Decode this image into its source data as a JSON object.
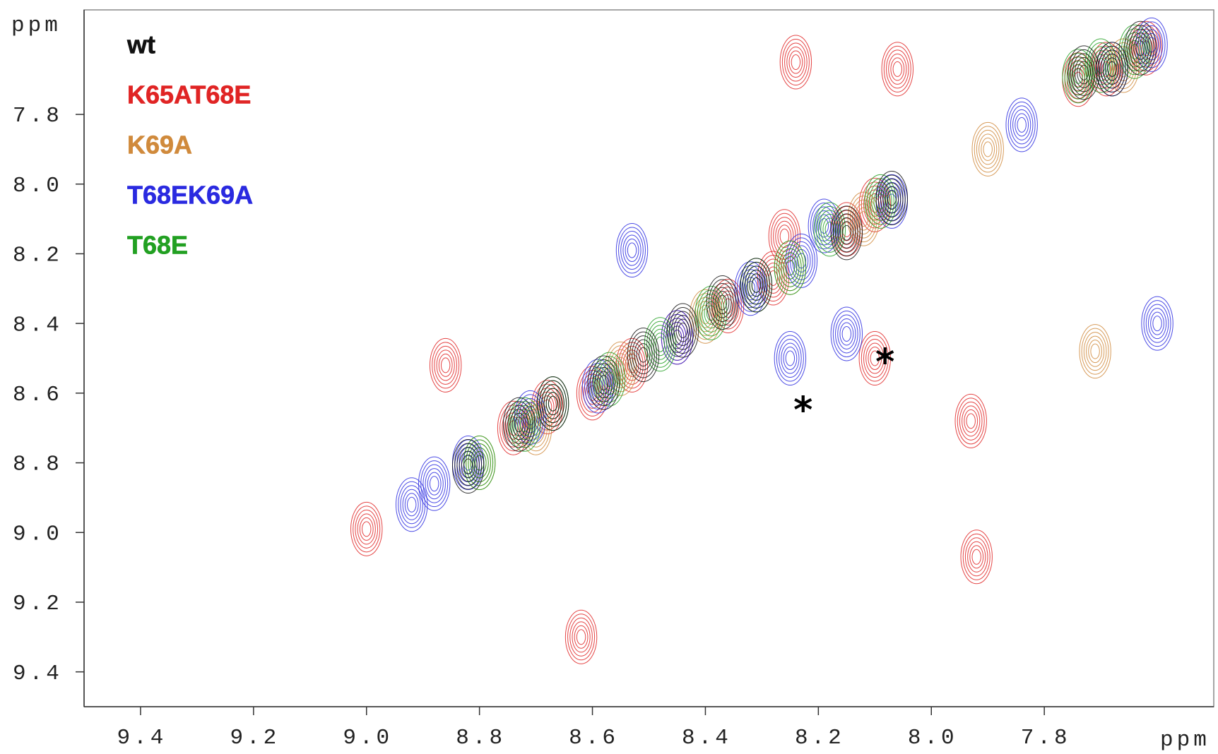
{
  "chart_data": {
    "type": "contour",
    "x_unit_label": "ppm",
    "y_unit_label": "ppm",
    "xlim": [
      9.5,
      7.5
    ],
    "ylim": [
      7.5,
      9.5
    ],
    "xticks": [
      9.4,
      9.2,
      {
        "value": 9.0,
        "label": "9.0"
      },
      8.8,
      8.6,
      8.4,
      8.2,
      {
        "value": 8.0,
        "label": "8.0"
      },
      7.8
    ],
    "yticks": [
      7.8,
      {
        "value": 8.0,
        "label": "8.0"
      },
      8.2,
      8.4,
      8.6,
      8.8,
      {
        "value": 9.0,
        "label": "9.0"
      },
      9.2,
      9.4
    ],
    "legend": "top-left",
    "series": [
      {
        "name": "K65AT68E",
        "color": "#e02424",
        "x": [
          7.62,
          7.69,
          7.74,
          8.1,
          8.15,
          8.28,
          8.36,
          8.45,
          8.53,
          8.6,
          8.68,
          8.74,
          8.24,
          8.06,
          7.92,
          7.93,
          8.62,
          9.0,
          8.86,
          8.1,
          8.26
        ],
        "values": [
          7.61,
          7.67,
          7.7,
          8.06,
          8.13,
          8.27,
          8.35,
          8.44,
          8.52,
          8.6,
          8.64,
          8.7,
          7.65,
          7.67,
          9.07,
          8.68,
          9.3,
          8.99,
          8.52,
          8.5,
          8.15
        ]
      },
      {
        "name": "K69A",
        "color": "#d08a3c",
        "x": [
          7.66,
          7.9,
          8.12,
          8.25,
          8.4,
          8.55,
          8.7,
          8.8,
          7.71
        ],
        "values": [
          7.66,
          7.9,
          8.1,
          8.24,
          8.38,
          8.53,
          8.7,
          8.8,
          8.48
        ]
      },
      {
        "name": "T68EK69A",
        "color": "#2a2ae0",
        "x": [
          7.61,
          7.68,
          7.84,
          8.07,
          8.19,
          8.23,
          8.32,
          8.45,
          8.59,
          8.71,
          8.82,
          8.88,
          8.92,
          8.53,
          7.6,
          8.25,
          8.15
        ],
        "values": [
          7.6,
          7.67,
          7.83,
          8.05,
          8.12,
          8.22,
          8.3,
          8.44,
          8.58,
          8.67,
          8.8,
          8.86,
          8.92,
          8.19,
          8.4,
          8.5,
          8.43
        ]
      },
      {
        "name": "T68E",
        "color": "#22a022",
        "x": [
          7.64,
          7.7,
          7.74,
          8.09,
          8.18,
          8.25,
          8.31,
          8.39,
          8.48,
          8.57,
          8.67,
          8.72,
          8.8
        ],
        "values": [
          7.62,
          7.66,
          7.69,
          8.05,
          8.13,
          8.24,
          8.29,
          8.37,
          8.46,
          8.56,
          8.63,
          8.69,
          8.8
        ]
      },
      {
        "name": "wt",
        "color": "#111111",
        "x": [
          7.63,
          7.68,
          7.73,
          8.07,
          8.15,
          8.31,
          8.37,
          8.44,
          8.51,
          8.58,
          8.67,
          8.73,
          8.82
        ],
        "values": [
          7.61,
          7.67,
          7.68,
          8.04,
          8.14,
          8.29,
          8.34,
          8.42,
          8.49,
          8.57,
          8.63,
          8.69,
          8.81
        ]
      }
    ],
    "legend_order": [
      "wt",
      "K65AT68E",
      "K69A",
      "T68EK69A",
      "T68E"
    ],
    "annotations": [
      {
        "text": "*",
        "x": 8.227,
        "y": 8.628
      },
      {
        "text": "*",
        "x": 8.082,
        "y": 8.49
      }
    ]
  }
}
